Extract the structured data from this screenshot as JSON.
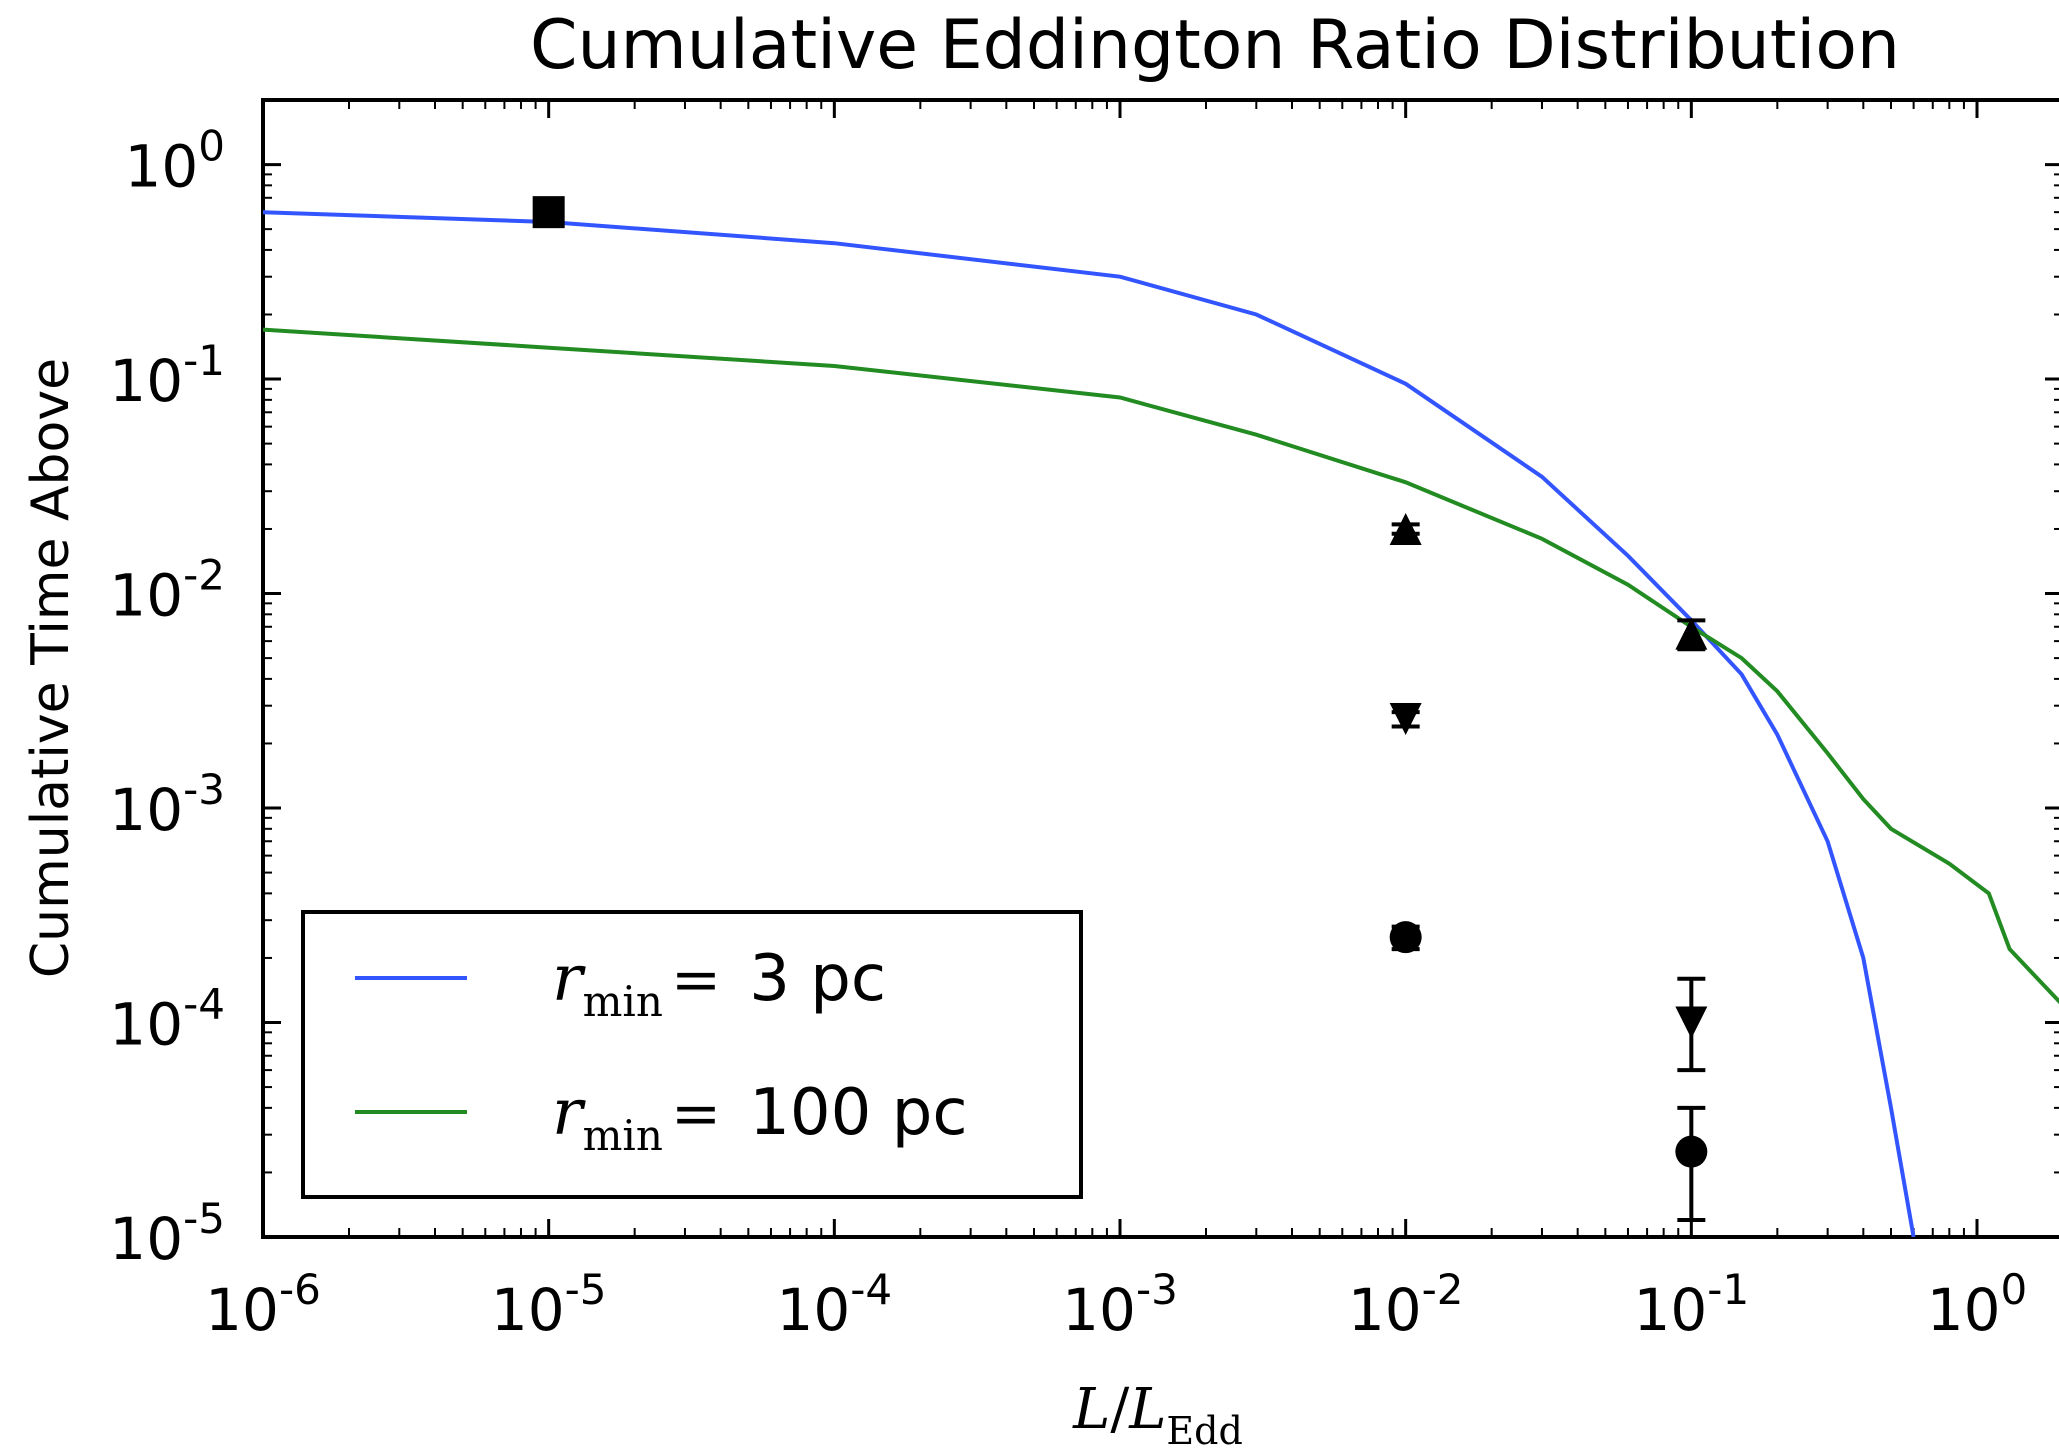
{
  "chart_data": {
    "type": "line",
    "title": "Cumulative Eddington Ratio Distribution",
    "xlabel": "L/L_Edd",
    "xlabel_parts": {
      "L": "L",
      "slash": "/",
      "L2": "L",
      "sub": "Edd"
    },
    "ylabel": "Cumulative Time Above",
    "xscale": "log",
    "yscale": "log",
    "xlim": [
      1e-06,
      2
    ],
    "ylim": [
      1e-05,
      2
    ],
    "x_ticks": [
      {
        "value": 1e-06,
        "base": "10",
        "exp": "-6"
      },
      {
        "value": 1e-05,
        "base": "10",
        "exp": "-5"
      },
      {
        "value": 0.0001,
        "base": "10",
        "exp": "-4"
      },
      {
        "value": 0.001,
        "base": "10",
        "exp": "-3"
      },
      {
        "value": 0.01,
        "base": "10",
        "exp": "-2"
      },
      {
        "value": 0.1,
        "base": "10",
        "exp": "-1"
      },
      {
        "value": 1,
        "base": "10",
        "exp": "0"
      }
    ],
    "y_ticks": [
      {
        "value": 1,
        "base": "10",
        "exp": "0"
      },
      {
        "value": 0.1,
        "base": "10",
        "exp": "-1"
      },
      {
        "value": 0.01,
        "base": "10",
        "exp": "-2"
      },
      {
        "value": 0.001,
        "base": "10",
        "exp": "-3"
      },
      {
        "value": 0.0001,
        "base": "10",
        "exp": "-4"
      },
      {
        "value": 1e-05,
        "base": "10",
        "exp": "-5"
      }
    ],
    "grid": false,
    "legend_position": "lower-left",
    "series": [
      {
        "name": "r_min = 3 pc",
        "legend": {
          "var": "r",
          "sub": "min",
          "eq": "=",
          "value": "3 pc"
        },
        "color": "#3355ff",
        "x": [
          1e-06,
          1e-05,
          0.0001,
          0.001,
          0.003,
          0.01,
          0.03,
          0.06,
          0.1,
          0.15,
          0.2,
          0.3,
          0.4,
          0.5,
          0.6
        ],
        "y": [
          0.6,
          0.54,
          0.43,
          0.3,
          0.2,
          0.095,
          0.035,
          0.015,
          0.0075,
          0.0042,
          0.0022,
          0.0007,
          0.0002,
          4e-05,
          1e-05
        ]
      },
      {
        "name": "r_min = 100 pc",
        "legend": {
          "var": "r",
          "sub": "min",
          "eq": "=",
          "value": "100 pc"
        },
        "color": "#228b22",
        "x": [
          1e-06,
          1e-05,
          0.0001,
          0.001,
          0.003,
          0.01,
          0.03,
          0.06,
          0.1,
          0.15,
          0.2,
          0.3,
          0.4,
          0.5,
          0.8,
          1.1,
          1.3,
          2
        ],
        "y": [
          0.17,
          0.14,
          0.115,
          0.082,
          0.055,
          0.033,
          0.018,
          0.011,
          0.007,
          0.005,
          0.0035,
          0.0018,
          0.0011,
          0.0008,
          0.00055,
          0.0004,
          0.00022,
          0.00012
        ]
      }
    ],
    "markers": [
      {
        "shape": "square",
        "x": 1e-05,
        "y": 0.6,
        "err": [
          0.55,
          0.65
        ]
      },
      {
        "shape": "triangle-up",
        "x": 0.01,
        "y": 0.02,
        "err": [
          0.019,
          0.021
        ]
      },
      {
        "shape": "triangle-down",
        "x": 0.01,
        "y": 0.0026,
        "err": [
          0.0024,
          0.0028
        ]
      },
      {
        "shape": "circle",
        "x": 0.01,
        "y": 0.00025,
        "err": [
          0.00022,
          0.00028
        ]
      },
      {
        "shape": "triangle-up",
        "x": 0.1,
        "y": 0.0065,
        "err": [
          0.0055,
          0.0075
        ]
      },
      {
        "shape": "triangle-down",
        "x": 0.1,
        "y": 0.0001,
        "err": [
          6e-05,
          0.00016
        ]
      },
      {
        "shape": "circle",
        "x": 0.1,
        "y": 2.5e-05,
        "err": [
          1.2e-05,
          4e-05
        ]
      }
    ]
  }
}
